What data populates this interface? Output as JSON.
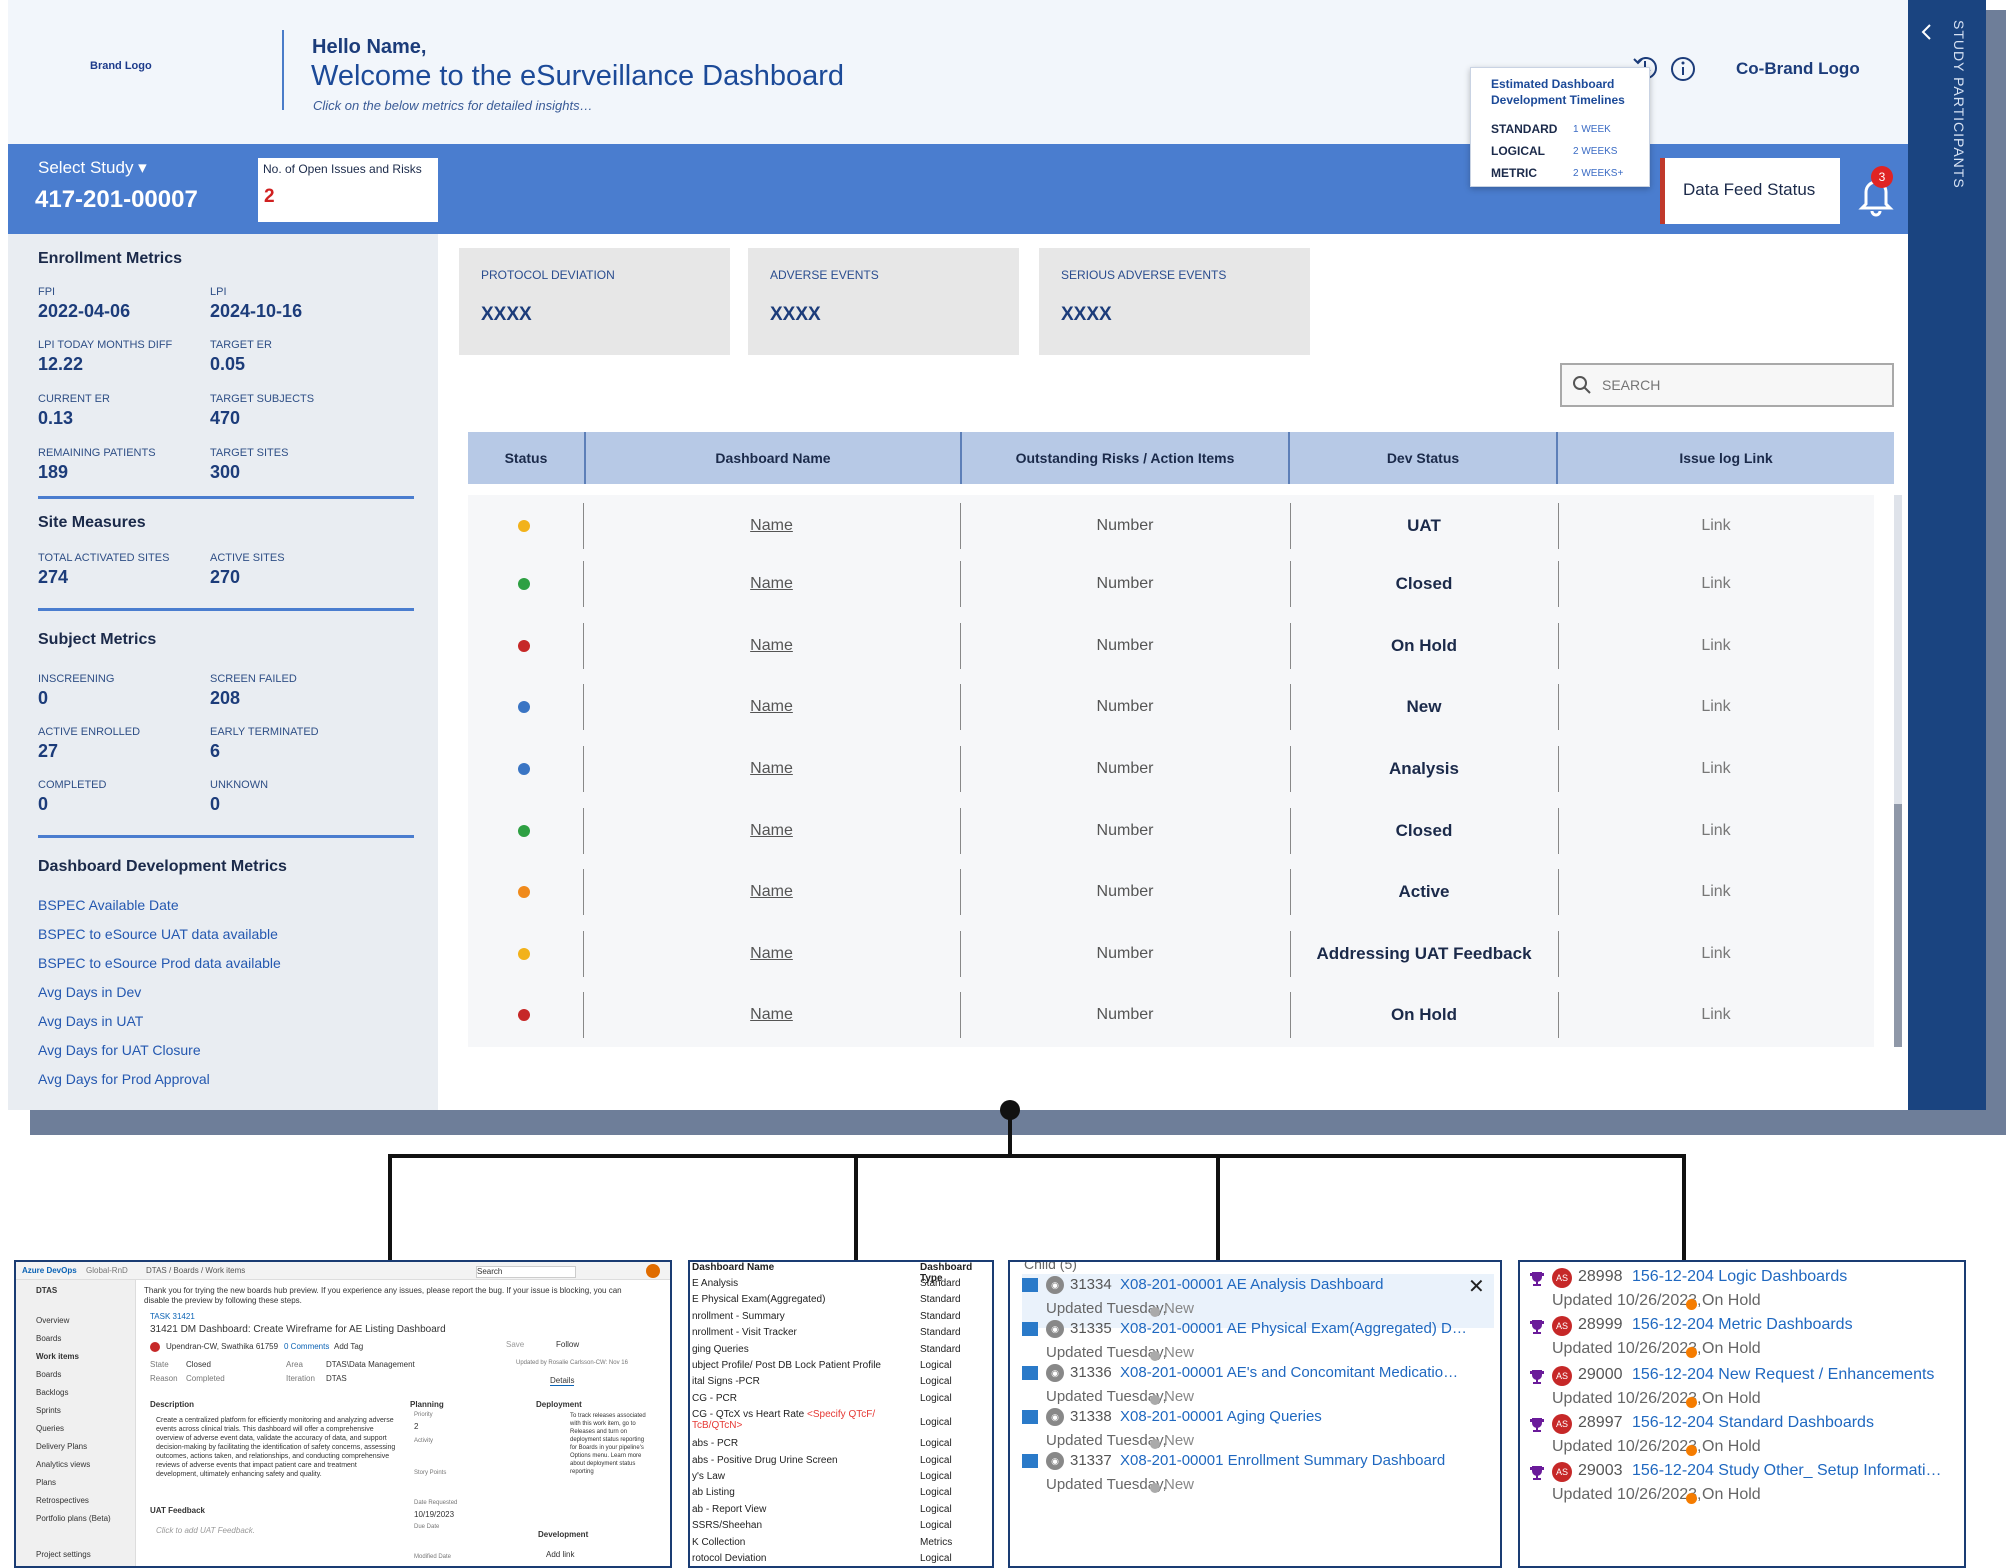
{
  "header": {
    "brand_logo": "Brand Logo",
    "hello": "Hello Name,",
    "welcome": "Welcome to the eSurveillance Dashboard",
    "subtitle": "Click on the below metrics for detailed insights…",
    "cobrand_logo": "Co-Brand Logo"
  },
  "timeline_popup": {
    "title": "Estimated Dashboard Development Timelines",
    "rows": [
      {
        "key": "STANDARD",
        "value": "1 WEEK"
      },
      {
        "key": "LOGICAL",
        "value": "2 WEEKS"
      },
      {
        "key": "METRIC",
        "value": "2 WEEKS+"
      }
    ]
  },
  "study_bar": {
    "select_label": "Select Study ▾",
    "study_id": "417-201-00007",
    "issues_label": "No. of Open Issues and Risks",
    "issues_value": "2",
    "data_feed_label": "Data Feed Status",
    "notification_count": "3"
  },
  "right_panel": {
    "label": "STUDY PARTICIPANTS"
  },
  "enrollment": {
    "title": "Enrollment Metrics",
    "metrics": [
      {
        "label": "FPI",
        "value": "2022-04-06"
      },
      {
        "label": "LPI",
        "value": "2024-10-16"
      },
      {
        "label": "LPI TODAY MONTHS DIFF",
        "value": "12.22"
      },
      {
        "label": "TARGET ER",
        "value": "0.05"
      },
      {
        "label": "CURRENT ER",
        "value": "0.13"
      },
      {
        "label": "TARGET SUBJECTS",
        "value": "470"
      },
      {
        "label": "REMAINING PATIENTS",
        "value": "189"
      },
      {
        "label": "TARGET SITES",
        "value": "300"
      }
    ]
  },
  "site_measures": {
    "title": "Site Measures",
    "metrics": [
      {
        "label": "TOTAL ACTIVATED SITES",
        "value": "274"
      },
      {
        "label": "ACTIVE SITES",
        "value": "270"
      }
    ]
  },
  "subject_metrics": {
    "title": "Subject Metrics",
    "metrics": [
      {
        "label": "INSCREENING",
        "value": "0"
      },
      {
        "label": "SCREEN FAILED",
        "value": "208"
      },
      {
        "label": "ACTIVE ENROLLED",
        "value": "27"
      },
      {
        "label": "EARLY TERMINATED",
        "value": "6"
      },
      {
        "label": "COMPLETED",
        "value": "0"
      },
      {
        "label": "UNKNOWN",
        "value": "0"
      }
    ]
  },
  "dev_metrics": {
    "title": "Dashboard Development Metrics",
    "links": [
      "BSPEC Available Date",
      "BSPEC to eSource UAT data available",
      "BSPEC to eSource Prod data available",
      "Avg Days in Dev",
      "Avg Days in UAT",
      "Avg Days for UAT Closure",
      "Avg Days for Prod Approval"
    ]
  },
  "cards": [
    {
      "label": "PROTOCOL DEVIATION",
      "value": "XXXX"
    },
    {
      "label": "ADVERSE EVENTS",
      "value": "XXXX"
    },
    {
      "label": "SERIOUS ADVERSE EVENTS",
      "value": "XXXX"
    }
  ],
  "search": {
    "placeholder": "SEARCH"
  },
  "table": {
    "columns": [
      "Status",
      "Dashboard Name",
      "Outstanding Risks / Action Items",
      "Dev Status",
      "Issue log Link"
    ],
    "rows": [
      {
        "status_color": "#f2b21b",
        "name": "Name",
        "risks": "Number",
        "dev_status": "UAT",
        "link": "Link"
      },
      {
        "status_color": "#2ea043",
        "name": "Name",
        "risks": "Number",
        "dev_status": "Closed",
        "link": "Link"
      },
      {
        "status_color": "#c62828",
        "name": "Name",
        "risks": "Number",
        "dev_status": "On Hold",
        "link": "Link"
      },
      {
        "status_color": "#3a75c4",
        "name": "Name",
        "risks": "Number",
        "dev_status": "New",
        "link": "Link"
      },
      {
        "status_color": "#3a75c4",
        "name": "Name",
        "risks": "Number",
        "dev_status": "Analysis",
        "link": "Link"
      },
      {
        "status_color": "#2ea043",
        "name": "Name",
        "risks": "Number",
        "dev_status": "Closed",
        "link": "Link"
      },
      {
        "status_color": "#f08a1c",
        "name": "Name",
        "risks": "Number",
        "dev_status": "Active",
        "link": "Link"
      },
      {
        "status_color": "#f2b21b",
        "name": "Name",
        "risks": "Number",
        "dev_status": "Addressing UAT Feedback",
        "link": "Link"
      },
      {
        "status_color": "#c62828",
        "name": "Name",
        "risks": "Number",
        "dev_status": "On Hold",
        "link": "Link"
      }
    ]
  },
  "ado_shot": {
    "brand": "Azure DevOps",
    "org": "Global-RnD",
    "crumbs": "DTAS / Boards / Work items",
    "search": "Search",
    "project": "DTAS",
    "nav": [
      "Overview",
      "Boards",
      "Work items",
      "Boards",
      "Backlogs",
      "Sprints",
      "Queries",
      "Delivery Plans",
      "Analytics views",
      "Plans",
      "Retrospectives",
      "Portfolio plans (Beta)",
      "Project settings"
    ],
    "banner": "Thank you for trying the new boards hub preview. If you experience any issues, please report the bug. If your issue is blocking, you can disable the preview by following these steps.",
    "task_tag": "TASK 31421",
    "task_title": "31421   DM Dashboard: Create Wireframe for AE Listing Dashboard",
    "assignee": "Upendran-CW, Swathika 61759",
    "comments": "0 Comments",
    "add_tag": "Add Tag",
    "save": "Save",
    "follow": "Follow",
    "state_label": "State",
    "state_value": "Closed",
    "area_label": "Area",
    "area_value": "DTAS\\Data Management",
    "reason_label": "Reason",
    "reason_value": "Completed",
    "iteration_label": "Iteration",
    "iteration_value": "DTAS",
    "updated": "Updated by Rosalie Carlsson-CW: Nov 16",
    "tabs": "Details",
    "description_h": "Description",
    "description": "Create a centralized platform for efficiently monitoring and analyzing adverse events across clinical trials. This dashboard will offer a comprehensive overview of adverse event data, validate the accuracy of data, and support decision-making by facilitating the identification of safety concerns, assessing outcomes, actions taken, and relationships, and conducting comprehensive reviews of adverse events that impact patient care and treatment development, ultimately enhancing safety and quality.",
    "uat_h": "UAT Feedback",
    "uat_placeholder": "Click to add UAT Feedback.",
    "planning_h": "Planning",
    "priority_label": "Priority",
    "priority_value": "2",
    "activity_label": "Activity",
    "story_points_label": "Story Points",
    "date_requested_label": "Date Requested",
    "date_requested_value": "10/19/2023",
    "due_date_label": "Due Date",
    "modified_date_label": "Modified Date",
    "deployment_h": "Deployment",
    "deployment_text": "To track releases associated with this work item, go to Releases and turn on deployment status reporting for Boards in your pipeline's Options menu. Learn more about deployment status reporting",
    "development_h": "Development",
    "add_link": "Add link"
  },
  "type_list": {
    "header_name": "Dashboard Name",
    "header_type": "Dashboard Type",
    "rows": [
      {
        "name": "E Analysis",
        "type": "Standard"
      },
      {
        "name": "E Physical Exam(Aggregated)",
        "type": "Standard"
      },
      {
        "name": "nrollment - Summary",
        "type": "Standard"
      },
      {
        "name": "nrollment - Visit Tracker",
        "type": "Standard"
      },
      {
        "name": "ging Queries",
        "type": "Standard"
      },
      {
        "name": "ubject Profile/ Post DB Lock Patient Profile",
        "type": "Logical"
      },
      {
        "name": "ital Signs -PCR",
        "type": "Logical"
      },
      {
        "name": "CG - PCR",
        "type": "Logical"
      },
      {
        "name": "CG - QTcX vs Heart Rate",
        "note": "<Specify QTcF/ TcB/QTcN>",
        "type": "Logical"
      },
      {
        "name": "abs - PCR",
        "type": "Logical"
      },
      {
        "name": "abs - Positive Drug Urine Screen",
        "type": "Logical"
      },
      {
        "name": "y's Law",
        "type": "Logical"
      },
      {
        "name": "ab Listing",
        "type": "Logical"
      },
      {
        "name": "ab - Report View",
        "type": "Logical"
      },
      {
        "name": "SSRS/Sheehan",
        "type": "Logical"
      },
      {
        "name": "K Collection",
        "type": "Metrics"
      },
      {
        "name": "rotocol Deviation",
        "type": "Logical"
      }
    ]
  },
  "child_list": {
    "header": "Child (5)",
    "items": [
      {
        "id": "31334",
        "title": "X08-201-00001 AE Analysis Dashboard",
        "updated": "Updated Tuesday,",
        "state": "New"
      },
      {
        "id": "31335",
        "title": "X08-201-00001 AE Physical Exam(Aggregated) D…",
        "updated": "Updated Tuesday,",
        "state": "New"
      },
      {
        "id": "31336",
        "title": "X08-201-00001 AE's and Concomitant Medicatio…",
        "updated": "Updated Tuesday,",
        "state": "New"
      },
      {
        "id": "31338",
        "title": "X08-201-00001 Aging Queries",
        "updated": "Updated Tuesday,",
        "state": "New"
      },
      {
        "id": "31337",
        "title": "X08-201-00001 Enrollment Summary Dashboard",
        "updated": "Updated Tuesday,",
        "state": "New"
      }
    ]
  },
  "feature_list": {
    "avatar": "AS",
    "items": [
      {
        "id": "28998",
        "title": "156-12-204 Logic Dashboards",
        "updated": "Updated 10/26/2023,",
        "state": "On Hold"
      },
      {
        "id": "28999",
        "title": "156-12-204 Metric Dashboards",
        "updated": "Updated 10/26/2023,",
        "state": "On Hold"
      },
      {
        "id": "29000",
        "title": "156-12-204 New Request / Enhancements",
        "updated": "Updated 10/26/2023,",
        "state": "On Hold"
      },
      {
        "id": "28997",
        "title": "156-12-204 Standard Dashboards",
        "updated": "Updated 10/26/2023,",
        "state": "On Hold"
      },
      {
        "id": "29003",
        "title": "156-12-204 Study Other_ Setup Informati…",
        "updated": "Updated 10/26/2023,",
        "state": "On Hold"
      }
    ]
  },
  "colors": {
    "primary": "#4a7dcf",
    "navy": "#1a4480",
    "header_bg": "#f2f6fb"
  }
}
